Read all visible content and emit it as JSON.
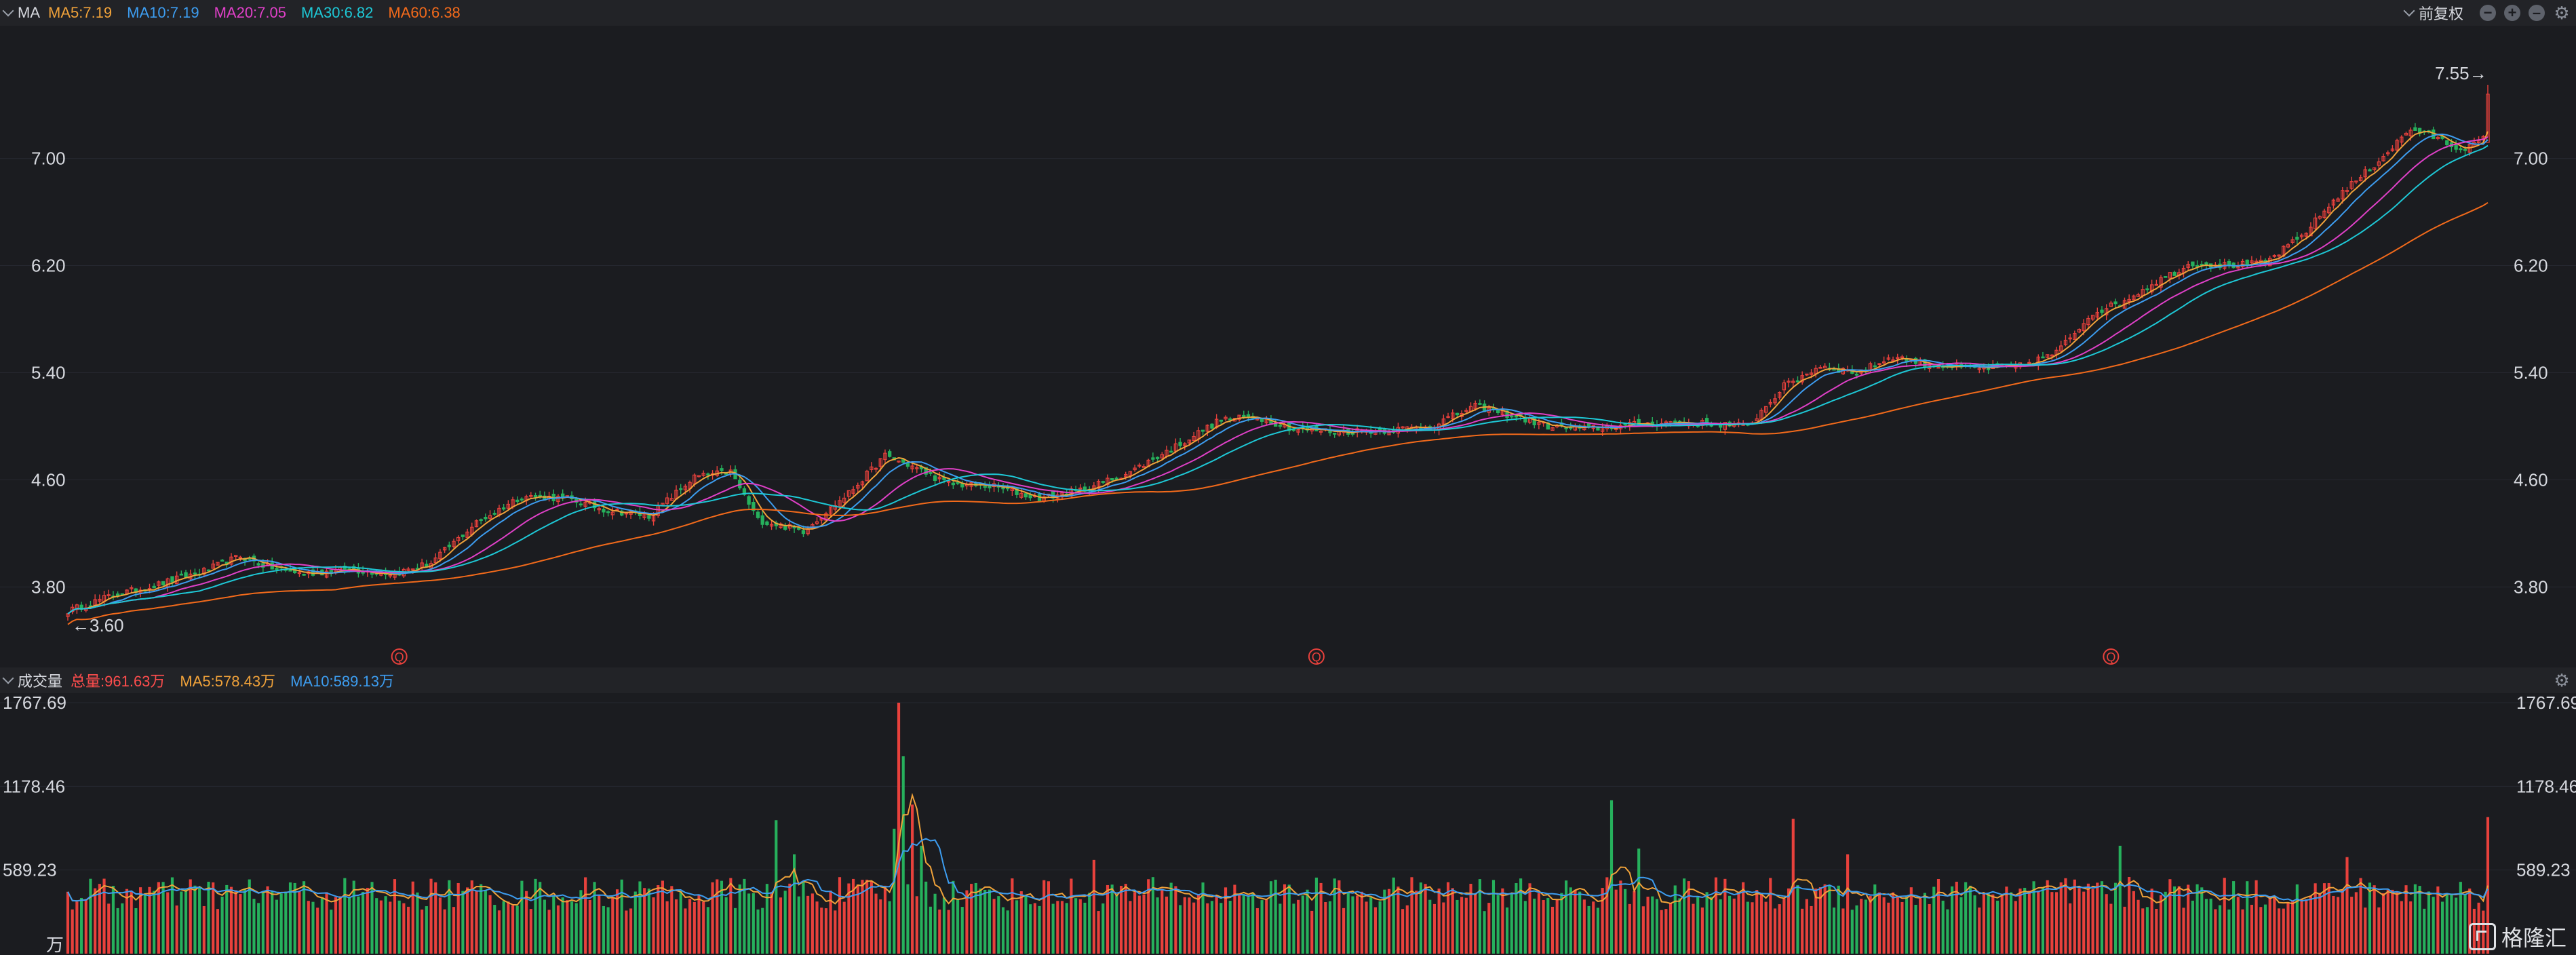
{
  "top_bar": {
    "indicator": "MA",
    "items": [
      {
        "text": "MA5:7.19",
        "color": "#f0a23a"
      },
      {
        "text": "MA10:7.19",
        "color": "#3d9df0"
      },
      {
        "text": "MA20:7.05",
        "color": "#e040c8"
      },
      {
        "text": "MA30:6.82",
        "color": "#1ec8d6"
      },
      {
        "text": "MA60:6.38",
        "color": "#f26a1b"
      }
    ],
    "adjust_label": "前复权",
    "controls": [
      "minus-circle-icon",
      "plus-circle-icon",
      "dash-circle-icon",
      "gear-icon"
    ]
  },
  "volume_bar": {
    "indicator": "成交量",
    "items": [
      {
        "text": "总量:961.63万",
        "color": "#ff4d4d"
      },
      {
        "text": "MA5:578.43万",
        "color": "#f0a23a"
      },
      {
        "text": "MA10:589.13万",
        "color": "#3d9df0"
      }
    ]
  },
  "price_axis": {
    "ticks": [
      "7.00",
      "6.20",
      "5.40",
      "4.60",
      "3.80"
    ]
  },
  "volume_axis": {
    "ticks": [
      "1767.69",
      "1178.46",
      "589.23"
    ],
    "unit": "万"
  },
  "markers": {
    "high_label": "7.55→",
    "low_label": "←3.60",
    "q_label": "Q"
  },
  "logo_text": "格隆汇",
  "chart_data": [
    {
      "type": "candlestick",
      "title": "",
      "ylim": [
        3.25,
        7.95
      ],
      "y_ticks": [
        7.0,
        6.2,
        5.4,
        4.6,
        3.8
      ],
      "max": 7.55,
      "min": 3.6,
      "up_color": "#e8413c",
      "down_color": "#26b05c",
      "anchors": [
        [
          0,
          3.62
        ],
        [
          10,
          3.74
        ],
        [
          18,
          3.8
        ],
        [
          30,
          3.92
        ],
        [
          38,
          4.03
        ],
        [
          44,
          3.95
        ],
        [
          52,
          3.9
        ],
        [
          62,
          3.93
        ],
        [
          72,
          3.9
        ],
        [
          80,
          3.98
        ],
        [
          90,
          4.28
        ],
        [
          100,
          4.48
        ],
        [
          110,
          4.46
        ],
        [
          118,
          4.38
        ],
        [
          128,
          4.33
        ],
        [
          138,
          4.62
        ],
        [
          146,
          4.66
        ],
        [
          152,
          4.3
        ],
        [
          162,
          4.22
        ],
        [
          172,
          4.5
        ],
        [
          180,
          4.78
        ],
        [
          186,
          4.7
        ],
        [
          194,
          4.57
        ],
        [
          204,
          4.55
        ],
        [
          214,
          4.46
        ],
        [
          224,
          4.53
        ],
        [
          234,
          4.66
        ],
        [
          244,
          4.85
        ],
        [
          254,
          5.05
        ],
        [
          262,
          5.07
        ],
        [
          270,
          4.98
        ],
        [
          280,
          4.96
        ],
        [
          290,
          4.97
        ],
        [
          300,
          5.0
        ],
        [
          310,
          5.15
        ],
        [
          318,
          5.08
        ],
        [
          326,
          5.0
        ],
        [
          334,
          4.98
        ],
        [
          344,
          5.01
        ],
        [
          354,
          5.03
        ],
        [
          362,
          5.02
        ],
        [
          370,
          5.0
        ],
        [
          378,
          5.3
        ],
        [
          386,
          5.45
        ],
        [
          394,
          5.4
        ],
        [
          402,
          5.52
        ],
        [
          410,
          5.46
        ],
        [
          420,
          5.43
        ],
        [
          430,
          5.45
        ],
        [
          438,
          5.55
        ],
        [
          446,
          5.85
        ],
        [
          452,
          5.92
        ],
        [
          460,
          6.08
        ],
        [
          468,
          6.22
        ],
        [
          476,
          6.2
        ],
        [
          484,
          6.22
        ],
        [
          492,
          6.42
        ],
        [
          500,
          6.72
        ],
        [
          508,
          6.95
        ],
        [
          516,
          7.22
        ],
        [
          522,
          7.15
        ],
        [
          526,
          7.08
        ],
        [
          530,
          7.1
        ],
        [
          532,
          7.15
        ],
        [
          533,
          7.48
        ]
      ],
      "series_count": 534,
      "moving_averages": [
        "MA5",
        "MA10",
        "MA20",
        "MA30",
        "MA60"
      ],
      "q_marker_index": [
        73,
        275,
        450
      ]
    },
    {
      "type": "bar",
      "title": "成交量",
      "ylim": [
        0,
        1767.69
      ],
      "y_ticks": [
        1767.69,
        1178.46,
        589.23
      ],
      "unit": "万",
      "last_value": 961.63,
      "peak_value": 1767.69,
      "peak_index": 183,
      "spikes": [
        [
          156,
          940
        ],
        [
          160,
          700
        ],
        [
          182,
          880
        ],
        [
          183,
          1767.69
        ],
        [
          184,
          1390
        ],
        [
          186,
          1050
        ],
        [
          188,
          760
        ],
        [
          226,
          660
        ],
        [
          340,
          1080
        ],
        [
          346,
          740
        ],
        [
          380,
          950
        ],
        [
          392,
          700
        ],
        [
          452,
          760
        ],
        [
          502,
          680
        ],
        [
          533,
          961.63
        ]
      ],
      "typical_range": [
        300,
        600
      ]
    }
  ]
}
